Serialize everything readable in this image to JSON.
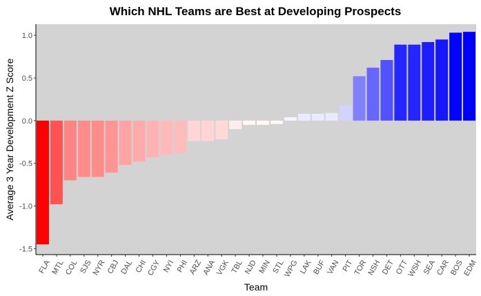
{
  "chart_data": {
    "type": "bar",
    "title": "Which NHL Teams are Best at Developing Prospects",
    "xlabel": "Team",
    "ylabel": "Average 3 Year Development Z Score",
    "ylim": [
      -1.57,
      1.13
    ],
    "yticks": [
      -1.5,
      -1.0,
      -0.5,
      0.0,
      0.5,
      1.0
    ],
    "ytick_labels": [
      "-1.5",
      "-1.0",
      "-0.5",
      "0.0",
      "0.5",
      "1.0"
    ],
    "grid": false,
    "legend": "none",
    "panel_background": "#d3d3d3",
    "color_scale": {
      "low": "#ff0000",
      "mid": "#ffffff",
      "high": "#0000ff"
    },
    "categories": [
      "FLA",
      "MTL",
      "COL",
      "SJS",
      "NYR",
      "CBJ",
      "DAL",
      "CHI",
      "CGY",
      "NYI",
      "PHI",
      "ARZ",
      "ANA",
      "VGK",
      "TBL",
      "NJD",
      "MIN",
      "STL",
      "WPG",
      "LAK",
      "BUF",
      "VAN",
      "PIT",
      "TOR",
      "NSH",
      "DET",
      "OTT",
      "WSH",
      "SEA",
      "CAR",
      "BOS",
      "EDM"
    ],
    "values": [
      -1.45,
      -0.98,
      -0.7,
      -0.66,
      -0.66,
      -0.61,
      -0.52,
      -0.48,
      -0.43,
      -0.4,
      -0.38,
      -0.24,
      -0.24,
      -0.22,
      -0.1,
      -0.05,
      -0.05,
      -0.04,
      0.04,
      0.08,
      0.08,
      0.09,
      0.18,
      0.52,
      0.62,
      0.71,
      0.89,
      0.89,
      0.92,
      0.95,
      1.03,
      1.04
    ]
  }
}
